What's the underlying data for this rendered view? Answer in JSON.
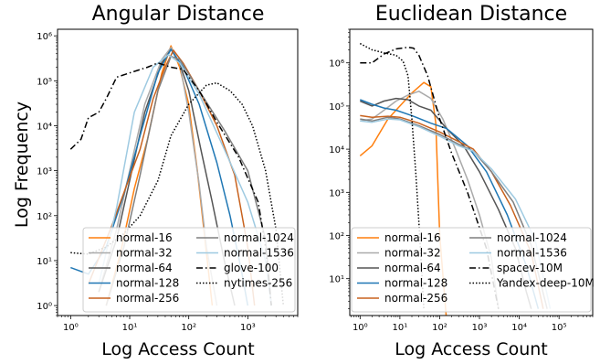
{
  "figure": {
    "ylabel": "Log Frequency"
  },
  "chart_data": [
    {
      "type": "line",
      "title": "Angular Distance",
      "xlabel": "Log Access Count",
      "ylabel": "Log Frequency",
      "xscale": "log",
      "yscale": "log",
      "xlim": [
        0.6,
        7000
      ],
      "ylim": [
        0.6,
        1400000
      ],
      "xticks": [
        {
          "v": 1,
          "label": "10⁰"
        },
        {
          "v": 10,
          "label": "10¹"
        },
        {
          "v": 100,
          "label": "10²"
        },
        {
          "v": 1000,
          "label": "10³"
        }
      ],
      "yticks": [
        {
          "v": 1,
          "label": "10⁰"
        },
        {
          "v": 10,
          "label": "10¹"
        },
        {
          "v": 100,
          "label": "10²"
        },
        {
          "v": 1000,
          "label": "10³"
        },
        {
          "v": 10000,
          "label": "10⁴"
        },
        {
          "v": 100000,
          "label": "10⁵"
        },
        {
          "v": 1000000,
          "label": "10⁶"
        }
      ],
      "grid": false,
      "legend": {
        "position": "bottom-right",
        "columns": 2
      },
      "series": [
        {
          "name": "normal-16",
          "color": "#ff7f0e",
          "dash": "solid",
          "points": [
            [
              4,
              1
            ],
            [
              7,
              15
            ],
            [
              12,
              400
            ],
            [
              20,
              5000
            ],
            [
              35,
              150000
            ],
            [
              50,
              600000
            ],
            [
              70,
              200000
            ],
            [
              100,
              30000
            ],
            [
              140,
              1000
            ],
            [
              180,
              50
            ],
            [
              250,
              1
            ]
          ]
        },
        {
          "name": "normal-32",
          "color": "#aaaaaa",
          "dash": "solid",
          "points": [
            [
              3,
              2
            ],
            [
              6,
              50
            ],
            [
              10,
              1000
            ],
            [
              18,
              30000
            ],
            [
              35,
              300000
            ],
            [
              50,
              550000
            ],
            [
              70,
              250000
            ],
            [
              100,
              20000
            ],
            [
              150,
              500
            ],
            [
              200,
              20
            ],
            [
              300,
              1
            ]
          ]
        },
        {
          "name": "normal-64",
          "color": "#555555",
          "dash": "solid",
          "points": [
            [
              3,
              2
            ],
            [
              6,
              30
            ],
            [
              10,
              600
            ],
            [
              18,
              20000
            ],
            [
              35,
              250000
            ],
            [
              50,
              500000
            ],
            [
              70,
              250000
            ],
            [
              100,
              60000
            ],
            [
              160,
              3000
            ],
            [
              250,
              200
            ],
            [
              400,
              10
            ],
            [
              600,
              1
            ]
          ]
        },
        {
          "name": "normal-128",
          "color": "#1f77b4",
          "dash": "solid",
          "points": [
            [
              1,
              7
            ],
            [
              2,
              5
            ],
            [
              4,
              20
            ],
            [
              8,
              300
            ],
            [
              15,
              6000
            ],
            [
              30,
              150000
            ],
            [
              50,
              500000
            ],
            [
              80,
              200000
            ],
            [
              150,
              30000
            ],
            [
              300,
              1500
            ],
            [
              500,
              100
            ],
            [
              800,
              5
            ],
            [
              1000,
              1
            ]
          ]
        },
        {
          "name": "normal-256",
          "color": "#c8621e",
          "dash": "solid",
          "points": [
            [
              2,
              3
            ],
            [
              5,
              60
            ],
            [
              9,
              500
            ],
            [
              15,
              3000
            ],
            [
              25,
              40000
            ],
            [
              40,
              200000
            ],
            [
              55,
              480000
            ],
            [
              80,
              250000
            ],
            [
              150,
              60000
            ],
            [
              300,
              10000
            ],
            [
              600,
              800
            ],
            [
              1000,
              20
            ],
            [
              1300,
              1
            ]
          ]
        },
        {
          "name": "normal-1024",
          "color": "#7f7f7f",
          "dash": "solid",
          "points": [
            [
              4,
              1
            ],
            [
              8,
              20
            ],
            [
              15,
              800
            ],
            [
              30,
              60000
            ],
            [
              50,
              350000
            ],
            [
              70,
              300000
            ],
            [
              150,
              60000
            ],
            [
              400,
              8000
            ],
            [
              1000,
              1000
            ],
            [
              2000,
              30
            ],
            [
              2500,
              1
            ]
          ]
        },
        {
          "name": "normal-1536",
          "color": "#9ecae1",
          "dash": "solid",
          "points": [
            [
              3,
              3
            ],
            [
              6,
              150
            ],
            [
              12,
              20000
            ],
            [
              25,
              200000
            ],
            [
              45,
              380000
            ],
            [
              70,
              250000
            ],
            [
              150,
              50000
            ],
            [
              400,
              3000
            ],
            [
              1000,
              200
            ],
            [
              2000,
              10
            ],
            [
              2500,
              1
            ]
          ]
        },
        {
          "name": "glove-100",
          "color": "#000000",
          "dash": "dashdot",
          "points": [
            [
              1,
              3000
            ],
            [
              1.5,
              5000
            ],
            [
              2,
              15000
            ],
            [
              3,
              20000
            ],
            [
              4,
              40000
            ],
            [
              6,
              120000
            ],
            [
              10,
              150000
            ],
            [
              20,
              200000
            ],
            [
              30,
              250000
            ],
            [
              50,
              200000
            ],
            [
              80,
              180000
            ],
            [
              150,
              60000
            ],
            [
              300,
              12000
            ],
            [
              700,
              2000
            ],
            [
              1500,
              200
            ],
            [
              2000,
              20
            ],
            [
              2500,
              1
            ]
          ]
        },
        {
          "name": "nytimes-256",
          "color": "#000000",
          "dash": "dotted",
          "points": [
            [
              1,
              15
            ],
            [
              2,
              14
            ],
            [
              4,
              20
            ],
            [
              8,
              40
            ],
            [
              15,
              100
            ],
            [
              30,
              600
            ],
            [
              50,
              6000
            ],
            [
              100,
              30000
            ],
            [
              200,
              80000
            ],
            [
              300,
              90000
            ],
            [
              500,
              60000
            ],
            [
              800,
              30000
            ],
            [
              1200,
              10000
            ],
            [
              2000,
              1000
            ],
            [
              3000,
              50
            ],
            [
              4000,
              1
            ]
          ]
        }
      ]
    },
    {
      "type": "line",
      "title": "Euclidean Distance",
      "xlabel": "Log Access Count",
      "ylabel": "",
      "xscale": "log",
      "yscale": "log",
      "xlim": [
        0.55,
        700000
      ],
      "ylim": [
        1.4,
        6000000
      ],
      "xticks": [
        {
          "v": 1,
          "label": "10⁰"
        },
        {
          "v": 10,
          "label": "10¹"
        },
        {
          "v": 100,
          "label": "10²"
        },
        {
          "v": 1000,
          "label": "10³"
        },
        {
          "v": 10000,
          "label": "10⁴"
        },
        {
          "v": 100000,
          "label": "10⁵"
        }
      ],
      "yticks": [
        {
          "v": 10,
          "label": "10¹"
        },
        {
          "v": 100,
          "label": "10²"
        },
        {
          "v": 1000,
          "label": "10³"
        },
        {
          "v": 10000,
          "label": "10⁴"
        },
        {
          "v": 100000,
          "label": "10⁵"
        },
        {
          "v": 1000000,
          "label": "10⁶"
        }
      ],
      "grid": false,
      "legend": {
        "position": "bottom-center",
        "columns": 2
      },
      "series": [
        {
          "name": "normal-16",
          "color": "#ff7f0e",
          "dash": "solid",
          "points": [
            [
              1,
              7000
            ],
            [
              2,
              12000
            ],
            [
              5,
              50000
            ],
            [
              10,
              100000
            ],
            [
              20,
              200000
            ],
            [
              40,
              350000
            ],
            [
              60,
              280000
            ],
            [
              80,
              40000
            ],
            [
              100,
              100
            ],
            [
              150,
              1
            ]
          ]
        },
        {
          "name": "normal-32",
          "color": "#aaaaaa",
          "dash": "solid",
          "points": [
            [
              1,
              45000
            ],
            [
              2,
              50000
            ],
            [
              4,
              80000
            ],
            [
              8,
              130000
            ],
            [
              16,
              180000
            ],
            [
              30,
              220000
            ],
            [
              60,
              150000
            ],
            [
              120,
              50000
            ],
            [
              250,
              10000
            ],
            [
              500,
              2000
            ],
            [
              1000,
              300
            ],
            [
              2000,
              30
            ],
            [
              3000,
              2
            ]
          ]
        },
        {
          "name": "normal-64",
          "color": "#555555",
          "dash": "solid",
          "points": [
            [
              1,
              130000
            ],
            [
              2,
              100000
            ],
            [
              4,
              130000
            ],
            [
              8,
              150000
            ],
            [
              16,
              140000
            ],
            [
              30,
              100000
            ],
            [
              60,
              80000
            ],
            [
              150,
              30000
            ],
            [
              400,
              12000
            ],
            [
              1000,
              3000
            ],
            [
              3000,
              400
            ],
            [
              8000,
              50
            ],
            [
              15000,
              5
            ],
            [
              20000,
              2
            ]
          ]
        },
        {
          "name": "normal-128",
          "color": "#1f77b4",
          "dash": "solid",
          "points": [
            [
              1,
              140000
            ],
            [
              2,
              110000
            ],
            [
              4,
              90000
            ],
            [
              8,
              80000
            ],
            [
              20,
              60000
            ],
            [
              60,
              40000
            ],
            [
              150,
              30000
            ],
            [
              500,
              12000
            ],
            [
              1500,
              3000
            ],
            [
              5000,
              300
            ],
            [
              15000,
              20
            ],
            [
              30000,
              2
            ]
          ]
        },
        {
          "name": "normal-256",
          "color": "#c8621e",
          "dash": "solid",
          "points": [
            [
              1,
              60000
            ],
            [
              2,
              55000
            ],
            [
              5,
              58000
            ],
            [
              10,
              55000
            ],
            [
              30,
              40000
            ],
            [
              100,
              25000
            ],
            [
              300,
              15000
            ],
            [
              700,
              10000
            ],
            [
              2000,
              3000
            ],
            [
              6000,
              500
            ],
            [
              20000,
              40
            ],
            [
              40000,
              2
            ]
          ]
        },
        {
          "name": "normal-1024",
          "color": "#7f7f7f",
          "dash": "solid",
          "points": [
            [
              1,
              50000
            ],
            [
              2,
              45000
            ],
            [
              5,
              55000
            ],
            [
              10,
              50000
            ],
            [
              30,
              35000
            ],
            [
              100,
              22000
            ],
            [
              300,
              13000
            ],
            [
              700,
              9000
            ],
            [
              2000,
              3000
            ],
            [
              7000,
              600
            ],
            [
              20000,
              60
            ],
            [
              50000,
              2
            ]
          ]
        },
        {
          "name": "normal-1536",
          "color": "#9ecae1",
          "dash": "solid",
          "points": [
            [
              1,
              45000
            ],
            [
              2,
              42000
            ],
            [
              5,
              50000
            ],
            [
              10,
              48000
            ],
            [
              30,
              33000
            ],
            [
              100,
              20000
            ],
            [
              300,
              12000
            ],
            [
              700,
              9000
            ],
            [
              2000,
              3500
            ],
            [
              8000,
              700
            ],
            [
              25000,
              80
            ],
            [
              60000,
              2
            ]
          ]
        },
        {
          "name": "spacev-10M",
          "color": "#000000",
          "dash": "dashdot",
          "points": [
            [
              1,
              1000000
            ],
            [
              2,
              1000000
            ],
            [
              4,
              1600000
            ],
            [
              8,
              2100000
            ],
            [
              16,
              2300000
            ],
            [
              22,
              2200000
            ],
            [
              30,
              1500000
            ],
            [
              50,
              500000
            ],
            [
              100,
              50000
            ],
            [
              200,
              8000
            ],
            [
              500,
              1000
            ],
            [
              1500,
              50
            ],
            [
              3000,
              2
            ]
          ]
        },
        {
          "name": "Yandex-deep-10M",
          "color": "#000000",
          "dash": "dotted",
          "points": [
            [
              1,
              2800000
            ],
            [
              2,
              2000000
            ],
            [
              4,
              1700000
            ],
            [
              8,
              1500000
            ],
            [
              12,
              1100000
            ],
            [
              16,
              500000
            ],
            [
              20,
              50000
            ],
            [
              25,
              3000
            ],
            [
              30,
              200
            ],
            [
              40,
              2
            ]
          ]
        }
      ]
    }
  ]
}
